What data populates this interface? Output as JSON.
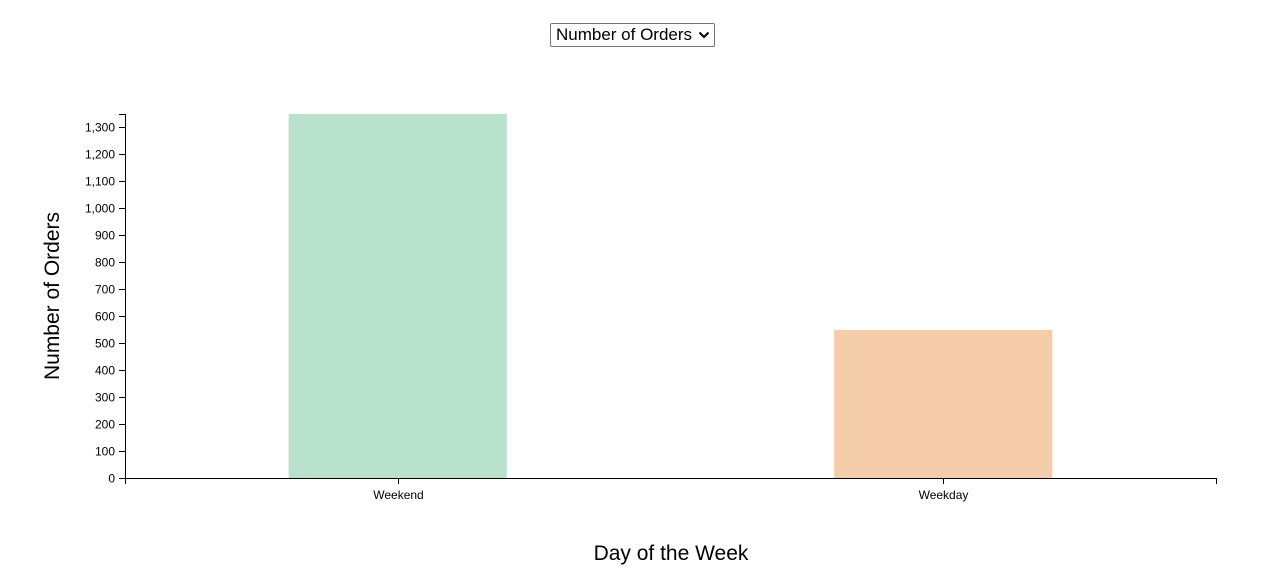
{
  "controls": {
    "metric_select": {
      "selected": "Number of Orders",
      "icon": "chevron-down-icon"
    }
  },
  "chart_data": {
    "type": "bar",
    "categories": [
      "Weekend",
      "Weekday"
    ],
    "values": [
      1348,
      548
    ],
    "colors": [
      "#b9e2cc",
      "#f6cdab"
    ],
    "xlabel": "Day of the Week",
    "ylabel": "Number of Orders",
    "ylim": [
      0,
      1348
    ],
    "yticks": [
      0,
      100,
      200,
      300,
      400,
      500,
      600,
      700,
      800,
      900,
      1000,
      1100,
      1200,
      1300
    ],
    "grid": false,
    "legend": "none"
  }
}
